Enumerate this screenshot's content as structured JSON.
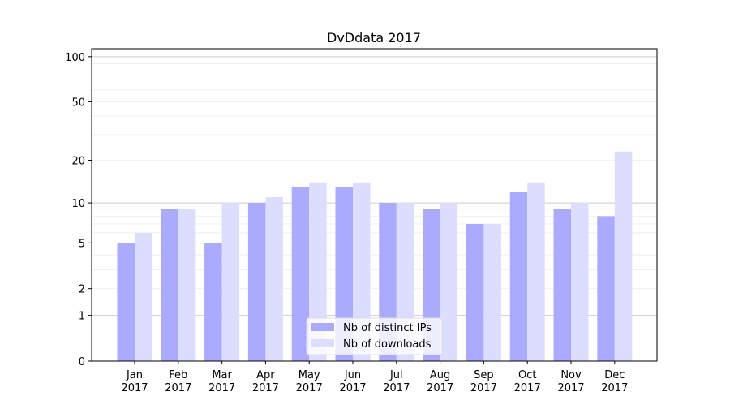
{
  "chart_data": {
    "type": "bar",
    "title": "DvDdata 2017",
    "xlabel": "",
    "ylabel": "",
    "yscale": "symlog (log10(1+y))",
    "ylim": [
      0,
      113
    ],
    "yticks": [
      0,
      1,
      2,
      5,
      10,
      20,
      50,
      100
    ],
    "grid": true,
    "legend_position": "bottom-center",
    "categories": [
      "Jan\n2017",
      "Feb\n2017",
      "Mar\n2017",
      "Apr\n2017",
      "May\n2017",
      "Jun\n2017",
      "Jul\n2017",
      "Aug\n2017",
      "Sep\n2017",
      "Oct\n2017",
      "Nov\n2017",
      "Dec\n2017"
    ],
    "series": [
      {
        "name": "Nb of distinct IPs",
        "color": "#aaaaff",
        "values": [
          5,
          9,
          5,
          10,
          13,
          13,
          10,
          9,
          7,
          12,
          9,
          8
        ]
      },
      {
        "name": "Nb of downloads",
        "color": "#ddddff",
        "values": [
          6,
          9,
          10,
          11,
          14,
          14,
          10,
          10,
          7,
          14,
          10,
          23
        ]
      }
    ]
  }
}
